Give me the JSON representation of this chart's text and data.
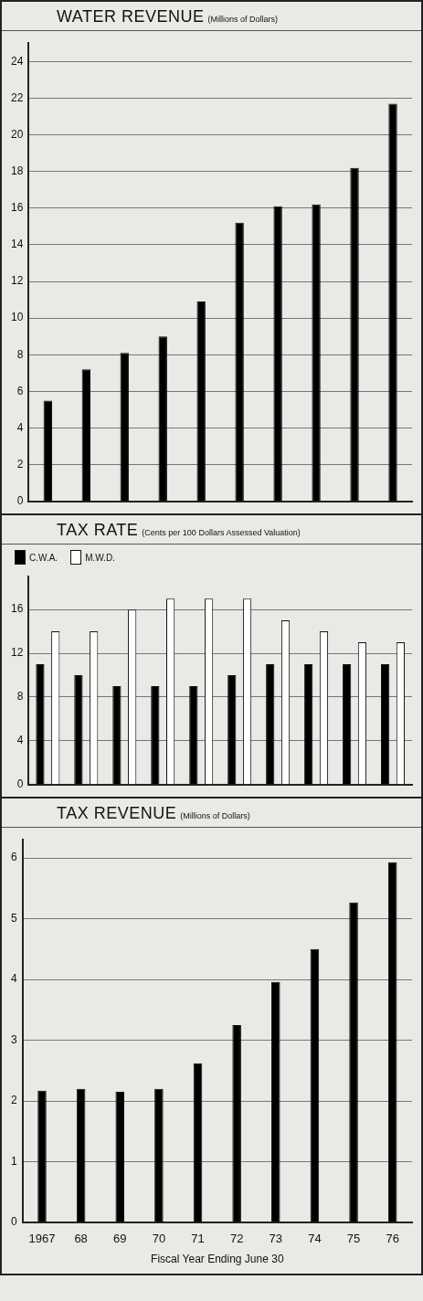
{
  "chart_data": [
    {
      "type": "bar",
      "title": "WATER REVENUE",
      "subtitle": "(Millions of Dollars)",
      "categories": [
        "1967",
        "68",
        "69",
        "70",
        "71",
        "72",
        "73",
        "74",
        "75",
        "76"
      ],
      "values": [
        5.5,
        7.2,
        8.1,
        9.0,
        10.9,
        15.2,
        16.1,
        16.2,
        18.2,
        21.7
      ],
      "color": "#000000",
      "ylim": [
        0,
        25
      ],
      "yticks": [
        0,
        2,
        4,
        6,
        8,
        10,
        12,
        14,
        16,
        18,
        20,
        22,
        24
      ],
      "grid": "y",
      "tick_labels": "y"
    },
    {
      "type": "bar",
      "title": "TAX RATE",
      "subtitle": "(Cents per 100 Dollars Assessed Valuation)",
      "categories": [
        "1967",
        "68",
        "69",
        "70",
        "71",
        "72",
        "73",
        "74",
        "75",
        "76"
      ],
      "series": [
        {
          "name": "C.W.A.",
          "color": "#000000",
          "values": [
            11,
            10,
            9,
            9,
            9,
            10,
            11,
            11,
            11,
            11
          ]
        },
        {
          "name": "M.W.D.",
          "color": "#ffffff",
          "values": [
            14,
            14,
            16,
            17,
            17,
            17,
            15,
            14,
            13,
            13
          ]
        }
      ],
      "ylim": [
        0,
        19
      ],
      "yticks": [
        0,
        4,
        8,
        12,
        16
      ],
      "grid": "y",
      "legend": "top left",
      "tick_labels": "y"
    },
    {
      "type": "bar",
      "title": "TAX REVENUE",
      "subtitle": "(Millions of Dollars)",
      "xlabel": "Fiscal Year Ending June 30",
      "categories": [
        "1967",
        "68",
        "69",
        "70",
        "71",
        "72",
        "73",
        "74",
        "75",
        "76"
      ],
      "values": [
        2.17,
        2.2,
        2.15,
        2.2,
        2.62,
        3.25,
        3.96,
        4.5,
        5.27,
        5.93
      ],
      "color": "#000000",
      "ylim": [
        0,
        6.3
      ],
      "yticks": [
        0,
        1,
        2,
        3,
        4,
        5,
        6
      ],
      "grid": "y"
    }
  ]
}
